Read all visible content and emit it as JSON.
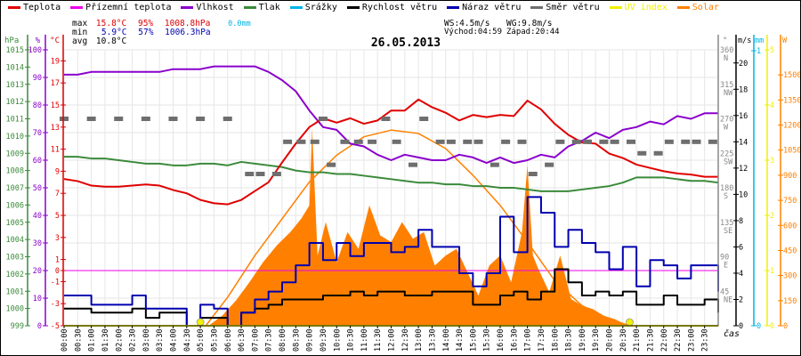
{
  "legend": [
    {
      "label": "Teplota",
      "color": "#e00000"
    },
    {
      "label": "Přízemní teplota",
      "color": "#ee00ee"
    },
    {
      "label": "Vlhkost",
      "color": "#8a00cc"
    },
    {
      "label": "Tlak",
      "color": "#3a8a3a"
    },
    {
      "label": "Srážky",
      "color": "#00b4e6"
    },
    {
      "label": "Rychlost větru",
      "color": "#000000"
    },
    {
      "label": "Náraz větru",
      "color": "#0000b0"
    },
    {
      "label": "Směr větru",
      "color": "#6e6e6e"
    },
    {
      "label": "UV index",
      "color": "#f0f000"
    },
    {
      "label": "Solar",
      "color": "#ff8000"
    }
  ],
  "stats": {
    "max_label": "max",
    "max_temp": "15.8°C",
    "max_hum": "95%",
    "max_press": "1008.8hPa",
    "rain": "0.0mm",
    "min_label": "min",
    "min_temp": "5.9°C",
    "min_hum": "57%",
    "min_press": "1006.3hPa",
    "avg_label": "avg",
    "avg_temp": "10.8°C",
    "ws": "WS:4.5m/s",
    "wg": "WG:9.8m/s",
    "sunrise": "Východ:04:59",
    "sunset": "Západ:20:44"
  },
  "colors": {
    "temp": "#e00000",
    "ground": "#ee00ee",
    "hum": "#8a00cc",
    "press": "#3a8a3a",
    "rain": "#00b4e6",
    "wind": "#000000",
    "gust": "#0000b0",
    "dir": "#6e6e6e",
    "uv": "#f0f000",
    "solar": "#ff8000",
    "grid": "#e6e6e6"
  },
  "chart_data": {
    "type": "line",
    "title": "26.05.2013",
    "xlabel": "čas",
    "x_ticks": [
      "00:00",
      "00:30",
      "01:00",
      "01:30",
      "02:00",
      "02:30",
      "03:00",
      "03:30",
      "04:00",
      "04:30",
      "05:00",
      "05:30",
      "06:00",
      "06:30",
      "07:00",
      "07:30",
      "08:00",
      "08:30",
      "09:00",
      "09:30",
      "10:00",
      "10:30",
      "11:00",
      "11:30",
      "12:00",
      "12:30",
      "13:00",
      "13:30",
      "14:00",
      "14:30",
      "15:00",
      "15:30",
      "16:00",
      "16:30",
      "17:00",
      "17:30",
      "18:00",
      "18:30",
      "19:00",
      "19:30",
      "20:00",
      "20:30",
      "21:00",
      "21:30",
      "22:00",
      "22:30",
      "23:00",
      "23:30"
    ],
    "xlim_hours": [
      0,
      24
    ],
    "axes": {
      "pressure": {
        "unit": "hPa",
        "range": [
          999,
          1015
        ],
        "ticks": [
          "1015",
          "1014",
          "1013",
          "1012",
          "1011",
          "1010",
          "1009",
          "1008",
          "1007",
          "1006",
          "1005",
          "1004",
          "1003",
          "1002",
          "1001",
          "1000",
          "999"
        ]
      },
      "humidity": {
        "unit": "%",
        "range": [
          0,
          100
        ],
        "ticks": [
          "100",
          "90",
          "80",
          "70",
          "60",
          "50",
          "40",
          "30",
          "20",
          "10",
          "0"
        ]
      },
      "temperature": {
        "unit": "°C",
        "range": [
          -5,
          20
        ],
        "ticks": [
          "19",
          "17",
          "15",
          "13",
          "11",
          "9",
          "7",
          "5",
          "3",
          "1",
          "0",
          "-1",
          "-3",
          "-5"
        ]
      },
      "direction": {
        "unit": "°",
        "range": [
          0,
          360
        ],
        "ticks": [
          {
            "v": "360",
            "d": "N"
          },
          {
            "v": "315",
            "d": "NW"
          },
          {
            "v": "270",
            "d": "W"
          },
          {
            "v": "225",
            "d": "SW"
          },
          {
            "v": "180",
            "d": "S"
          },
          {
            "v": "135",
            "d": "SE"
          },
          {
            "v": "90",
            "d": "E"
          },
          {
            "v": "45",
            "d": "NE"
          }
        ]
      },
      "wind": {
        "unit": "m/s",
        "range": [
          0,
          21
        ],
        "ticks": [
          "20",
          "18",
          "16",
          "14",
          "12",
          "10",
          "8",
          "6",
          "4",
          "2",
          "0"
        ]
      },
      "rain": {
        "unit": "mm",
        "range": [
          0,
          1
        ],
        "ticks": [
          "1",
          "0"
        ]
      },
      "uv": {
        "unit": "",
        "range": [
          0,
          5
        ],
        "ticks": [
          "5",
          "4",
          "3",
          "2",
          "1",
          "0"
        ]
      },
      "solar": {
        "unit": "W",
        "range": [
          0,
          1650
        ],
        "ticks": [
          "1500",
          "1350",
          "1200",
          "1050",
          "900",
          "750",
          "600",
          "450",
          "300",
          "150",
          "0"
        ]
      }
    },
    "series": [
      {
        "name": "Teplota",
        "axis": "temperature",
        "x": [
          0,
          0.5,
          1,
          1.5,
          2,
          2.5,
          3,
          3.5,
          4,
          4.5,
          5,
          5.5,
          6,
          6.5,
          7,
          7.5,
          8,
          8.5,
          9,
          9.5,
          10,
          10.5,
          11,
          11.5,
          12,
          12.5,
          13,
          13.5,
          14,
          14.5,
          15,
          15.5,
          16,
          16.5,
          17,
          17.5,
          18,
          18.5,
          19,
          19.5,
          20,
          20.5,
          21,
          21.5,
          22,
          22.5,
          23,
          23.5,
          24
        ],
        "y": [
          8.3,
          8.1,
          7.7,
          7.6,
          7.6,
          7.7,
          7.8,
          7.7,
          7.3,
          7.0,
          6.4,
          6.1,
          6.0,
          6.4,
          7.2,
          8.0,
          9.8,
          11.5,
          13.0,
          13.8,
          13.4,
          13.8,
          13.3,
          13.6,
          14.5,
          14.5,
          15.5,
          14.8,
          14.3,
          13.6,
          14.1,
          13.9,
          14.1,
          14.0,
          15.4,
          14.6,
          13.3,
          12.3,
          11.6,
          11.5,
          10.6,
          10.2,
          9.6,
          9.3,
          9.0,
          8.8,
          8.7,
          8.5,
          8.5
        ]
      },
      {
        "name": "Přízemní teplota",
        "axis": "temperature",
        "x": [
          0,
          24
        ],
        "y": [
          0,
          0
        ]
      },
      {
        "name": "Vlhkost",
        "axis": "humidity",
        "x": [
          0,
          0.5,
          1,
          1.5,
          2,
          2.5,
          3,
          3.5,
          4,
          4.5,
          5,
          5.5,
          6,
          6.5,
          7,
          7.5,
          8,
          8.5,
          9,
          9.5,
          10,
          10.5,
          11,
          11.5,
          12,
          12.5,
          13,
          13.5,
          14,
          14.5,
          15,
          15.5,
          16,
          16.5,
          17,
          17.5,
          18,
          18.5,
          19,
          19.5,
          20,
          20.5,
          21,
          21.5,
          22,
          22.5,
          23,
          23.5,
          24
        ],
        "y": [
          91,
          91,
          92,
          92,
          92,
          92,
          92,
          92,
          93,
          93,
          93,
          94,
          94,
          94,
          94,
          92,
          89,
          85,
          78,
          72,
          71,
          66,
          65,
          62,
          60,
          62,
          61,
          60,
          60,
          62,
          61,
          59,
          61,
          59,
          60,
          62,
          61,
          65,
          67,
          70,
          68,
          71,
          72,
          74,
          73,
          76,
          75,
          77,
          77
        ]
      },
      {
        "name": "Tlak",
        "axis": "pressure",
        "x": [
          0,
          0.5,
          1,
          1.5,
          2,
          2.5,
          3,
          3.5,
          4,
          4.5,
          5,
          5.5,
          6,
          6.5,
          7,
          7.5,
          8,
          8.5,
          9,
          9.5,
          10,
          10.5,
          11,
          11.5,
          12,
          12.5,
          13,
          13.5,
          14,
          14.5,
          15,
          15.5,
          16,
          16.5,
          17,
          17.5,
          18,
          18.5,
          19,
          19.5,
          20,
          20.5,
          21,
          21.5,
          22,
          22.5,
          23,
          23.5,
          24
        ],
        "y": [
          1008.8,
          1008.8,
          1008.7,
          1008.7,
          1008.6,
          1008.5,
          1008.4,
          1008.4,
          1008.3,
          1008.3,
          1008.4,
          1008.4,
          1008.3,
          1008.5,
          1008.4,
          1008.3,
          1008.2,
          1008.0,
          1007.9,
          1007.9,
          1007.8,
          1007.8,
          1007.7,
          1007.6,
          1007.5,
          1007.4,
          1007.3,
          1007.3,
          1007.2,
          1007.2,
          1007.1,
          1007.1,
          1007.0,
          1007.0,
          1006.9,
          1006.8,
          1006.8,
          1006.8,
          1006.9,
          1007.0,
          1007.1,
          1007.3,
          1007.6,
          1007.6,
          1007.6,
          1007.5,
          1007.4,
          1007.4,
          1007.3
        ]
      },
      {
        "name": "Rychlost větru",
        "axis": "wind",
        "x": [
          0,
          0.5,
          1,
          1.5,
          2,
          2.5,
          3,
          3.5,
          4,
          4.5,
          5,
          5.5,
          6,
          6.5,
          7,
          7.5,
          8,
          8.5,
          9,
          9.5,
          10,
          10.5,
          11,
          11.5,
          12,
          12.5,
          13,
          13.5,
          14,
          14.5,
          15,
          15.5,
          16,
          16.5,
          17,
          17.5,
          18,
          18.5,
          19,
          19.5,
          20,
          20.5,
          21,
          21.5,
          22,
          22.5,
          23,
          23.5,
          24
        ],
        "y": [
          1.3,
          1.3,
          1.0,
          1.0,
          1.0,
          1.3,
          0.6,
          1.0,
          1.0,
          0.0,
          0.6,
          0.6,
          0.0,
          1.0,
          1.3,
          1.6,
          2.0,
          2.0,
          2.0,
          2.3,
          2.3,
          2.6,
          2.3,
          2.6,
          2.6,
          2.3,
          2.3,
          2.6,
          2.6,
          2.6,
          1.6,
          1.6,
          2.3,
          2.6,
          2.0,
          2.6,
          4.3,
          3.3,
          2.3,
          2.6,
          2.3,
          2.6,
          1.6,
          1.6,
          2.3,
          1.6,
          1.6,
          2.0,
          1.0
        ]
      },
      {
        "name": "Náraz větru",
        "axis": "wind",
        "x": [
          0,
          0.5,
          1,
          1.5,
          2,
          2.5,
          3,
          3.5,
          4,
          4.5,
          5,
          5.5,
          6,
          6.5,
          7,
          7.5,
          8,
          8.5,
          9,
          9.5,
          10,
          10.5,
          11,
          11.5,
          12,
          12.5,
          13,
          13.5,
          14,
          14.5,
          15,
          15.5,
          16,
          16.5,
          17,
          17.5,
          18,
          18.5,
          19,
          19.5,
          20,
          20.5,
          21,
          21.5,
          22,
          22.5,
          23,
          23.5,
          24
        ],
        "y": [
          2.3,
          2.3,
          1.6,
          1.6,
          1.6,
          2.3,
          1.3,
          1.3,
          1.3,
          0.0,
          1.6,
          1.3,
          0.0,
          1.0,
          2.0,
          2.6,
          3.3,
          4.6,
          6.3,
          5.0,
          6.3,
          5.3,
          6.3,
          6.3,
          5.6,
          6.0,
          7.3,
          6.0,
          6.0,
          4.0,
          3.0,
          4.0,
          8.3,
          5.6,
          9.8,
          8.6,
          6.0,
          7.3,
          6.3,
          5.6,
          4.3,
          6.0,
          3.0,
          5.0,
          4.6,
          3.6,
          4.6,
          4.6,
          2.6
        ]
      },
      {
        "name": "Směr větru",
        "axis": "direction",
        "type": "scatter",
        "x": [
          0,
          1,
          2,
          3,
          4,
          5,
          6,
          6.8,
          7.2,
          7.8,
          8.2,
          8.7,
          9.2,
          9.5,
          9.8,
          10.3,
          10.8,
          11.3,
          11.8,
          12.2,
          12.8,
          13.2,
          13.8,
          14.2,
          14.8,
          15.2,
          15.8,
          16.2,
          16.8,
          17.2,
          17.8,
          18.2,
          18.8,
          19.2,
          19.8,
          20.2,
          20.8,
          21.2,
          21.8,
          22.2,
          22.8,
          23.2,
          23.8
        ],
        "y": [
          270,
          270,
          270,
          270,
          270,
          270,
          270,
          198,
          198,
          198,
          240,
          240,
          240,
          270,
          210,
          240,
          240,
          240,
          270,
          240,
          210,
          270,
          240,
          240,
          240,
          240,
          210,
          240,
          240,
          198,
          210,
          240,
          240,
          240,
          240,
          240,
          240,
          225,
          225,
          240,
          240,
          240,
          240
        ]
      },
      {
        "name": "Srážky",
        "axis": "rain",
        "x": [
          0,
          24
        ],
        "y": [
          0,
          0
        ]
      },
      {
        "name": "UV index",
        "axis": "uv",
        "x": [
          0,
          24
        ],
        "y": [
          0,
          0
        ],
        "markers": [
          {
            "x": 5.0,
            "y": 0
          },
          {
            "x": 20.75,
            "y": 0
          }
        ]
      },
      {
        "name": "Solar",
        "axis": "solar",
        "type": "area",
        "x": [
          5.3,
          5.8,
          6.3,
          6.8,
          7.3,
          7.8,
          8.3,
          8.7,
          9.0,
          9.1,
          9.3,
          9.6,
          10.0,
          10.4,
          10.8,
          11.2,
          11.6,
          12.0,
          12.4,
          12.8,
          13.2,
          13.6,
          14.0,
          14.4,
          14.8,
          15.2,
          15.6,
          16.0,
          16.4,
          16.8,
          17.0,
          17.2,
          17.4,
          17.8,
          18.2,
          18.6,
          19.0,
          19.4,
          19.8,
          20.2,
          20.7
        ],
        "y": [
          0,
          60,
          150,
          260,
          380,
          480,
          560,
          640,
          720,
          1180,
          420,
          620,
          380,
          560,
          460,
          720,
          540,
          500,
          620,
          520,
          560,
          360,
          420,
          460,
          320,
          180,
          360,
          420,
          260,
          560,
          960,
          420,
          340,
          200,
          420,
          160,
          120,
          100,
          60,
          40,
          0
        ]
      },
      {
        "name": "Solar max",
        "axis": "solar",
        "x": [
          5.2,
          6,
          7,
          8,
          9,
          10,
          11,
          12,
          13,
          14,
          15,
          16,
          17,
          18,
          19,
          20,
          20.75
        ],
        "y": [
          0,
          170,
          420,
          640,
          860,
          1020,
          1130,
          1170,
          1150,
          1060,
          900,
          720,
          500,
          270,
          120,
          40,
          0
        ]
      }
    ]
  }
}
